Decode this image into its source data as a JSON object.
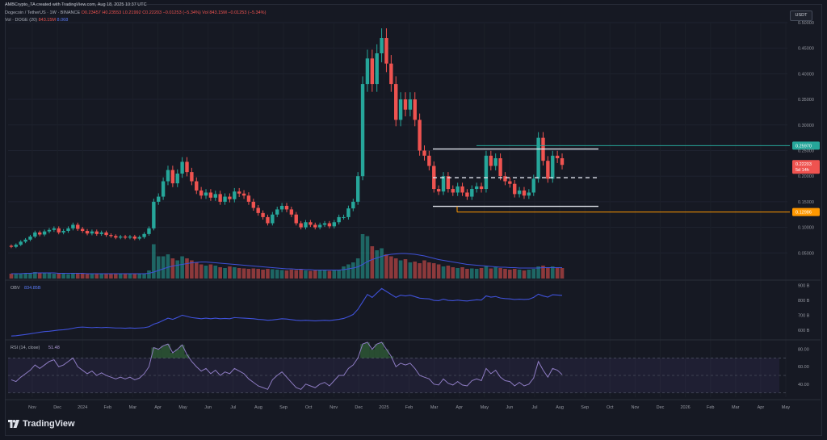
{
  "header": {
    "credit": "AMBCrypto_TA created with TradingView.com, Aug 18, 2025 10:37 UTC",
    "symbol": "Dogecoin / TetherUS · 1W · BINANCE",
    "ohlc": "O0.23457 H0.23553 L0.21992 C0.22203 −0.01253 (−5.34%)",
    "vol_inline": "Vol 843.15M −0.01253 (−5.34%)",
    "vol_label": "Vol · DOGE (20)",
    "vol_value": "843.15M",
    "vol_ma": "8.068"
  },
  "currency_button": "USDT",
  "footer": {
    "brand": "TradingView"
  },
  "chart_data": {
    "type": "candlestick",
    "title": "Dogecoin / TetherUS · 1W · BINANCE",
    "price_axis": {
      "ticks": [
        "0.50000",
        "0.45000",
        "0.40000",
        "0.35000",
        "0.30000",
        "0.25000",
        "0.20000",
        "0.15000",
        "0.10000",
        "0.05000"
      ],
      "range": [
        0.0,
        0.5
      ]
    },
    "time_axis": [
      "Nov",
      "Dec",
      "2024",
      "Feb",
      "Mar",
      "Apr",
      "May",
      "Jun",
      "Jul",
      "Aug",
      "Sep",
      "Oct",
      "Nov",
      "Dec",
      "2025",
      "Feb",
      "Mar",
      "Apr",
      "May",
      "Jun",
      "Jul",
      "Aug",
      "Sep",
      "Oct",
      "Nov",
      "Dec",
      "2026",
      "Feb",
      "Mar",
      "Apr",
      "May"
    ],
    "candles": [
      [
        0.064,
        0.062
      ],
      [
        0.062,
        0.066
      ],
      [
        0.066,
        0.072
      ],
      [
        0.072,
        0.076
      ],
      [
        0.076,
        0.082
      ],
      [
        0.082,
        0.09
      ],
      [
        0.09,
        0.086
      ],
      [
        0.086,
        0.092
      ],
      [
        0.092,
        0.095
      ],
      [
        0.095,
        0.098
      ],
      [
        0.098,
        0.09
      ],
      [
        0.09,
        0.093
      ],
      [
        0.093,
        0.098
      ],
      [
        0.098,
        0.105
      ],
      [
        0.105,
        0.097
      ],
      [
        0.097,
        0.093
      ],
      [
        0.093,
        0.088
      ],
      [
        0.088,
        0.092
      ],
      [
        0.092,
        0.087
      ],
      [
        0.087,
        0.09
      ],
      [
        0.09,
        0.085
      ],
      [
        0.085,
        0.083
      ],
      [
        0.083,
        0.08
      ],
      [
        0.08,
        0.082
      ],
      [
        0.082,
        0.08
      ],
      [
        0.08,
        0.082
      ],
      [
        0.082,
        0.078
      ],
      [
        0.078,
        0.081
      ],
      [
        0.081,
        0.087
      ],
      [
        0.087,
        0.098
      ],
      [
        0.098,
        0.15
      ],
      [
        0.15,
        0.16
      ],
      [
        0.16,
        0.19
      ],
      [
        0.19,
        0.212
      ],
      [
        0.212,
        0.186
      ],
      [
        0.186,
        0.205
      ],
      [
        0.205,
        0.228
      ],
      [
        0.228,
        0.208
      ],
      [
        0.208,
        0.19
      ],
      [
        0.19,
        0.172
      ],
      [
        0.172,
        0.162
      ],
      [
        0.162,
        0.168
      ],
      [
        0.168,
        0.158
      ],
      [
        0.158,
        0.165
      ],
      [
        0.165,
        0.15
      ],
      [
        0.15,
        0.16
      ],
      [
        0.16,
        0.155
      ],
      [
        0.155,
        0.17
      ],
      [
        0.17,
        0.166
      ],
      [
        0.166,
        0.162
      ],
      [
        0.162,
        0.15
      ],
      [
        0.15,
        0.138
      ],
      [
        0.138,
        0.128
      ],
      [
        0.128,
        0.12
      ],
      [
        0.12,
        0.108
      ],
      [
        0.108,
        0.125
      ],
      [
        0.125,
        0.135
      ],
      [
        0.135,
        0.142
      ],
      [
        0.142,
        0.135
      ],
      [
        0.135,
        0.125
      ],
      [
        0.125,
        0.108
      ],
      [
        0.108,
        0.1
      ],
      [
        0.1,
        0.11
      ],
      [
        0.11,
        0.105
      ],
      [
        0.105,
        0.1
      ],
      [
        0.1,
        0.105
      ],
      [
        0.105,
        0.108
      ],
      [
        0.108,
        0.102
      ],
      [
        0.102,
        0.11
      ],
      [
        0.11,
        0.12
      ],
      [
        0.12,
        0.12
      ],
      [
        0.12,
        0.137
      ],
      [
        0.137,
        0.15
      ],
      [
        0.15,
        0.2
      ],
      [
        0.2,
        0.38
      ],
      [
        0.38,
        0.43
      ],
      [
        0.43,
        0.38
      ],
      [
        0.38,
        0.44
      ],
      [
        0.44,
        0.47
      ],
      [
        0.47,
        0.42
      ],
      [
        0.42,
        0.38
      ],
      [
        0.38,
        0.31
      ],
      [
        0.31,
        0.35
      ],
      [
        0.35,
        0.33
      ],
      [
        0.33,
        0.35
      ],
      [
        0.35,
        0.31
      ],
      [
        0.31,
        0.25
      ],
      [
        0.25,
        0.24
      ],
      [
        0.24,
        0.22
      ],
      [
        0.22,
        0.175
      ],
      [
        0.175,
        0.17
      ],
      [
        0.17,
        0.2
      ],
      [
        0.2,
        0.175
      ],
      [
        0.175,
        0.168
      ],
      [
        0.168,
        0.18
      ],
      [
        0.18,
        0.168
      ],
      [
        0.168,
        0.16
      ],
      [
        0.16,
        0.175
      ],
      [
        0.175,
        0.18
      ],
      [
        0.18,
        0.175
      ],
      [
        0.175,
        0.24
      ],
      [
        0.24,
        0.22
      ],
      [
        0.22,
        0.235
      ],
      [
        0.235,
        0.2
      ],
      [
        0.2,
        0.19
      ],
      [
        0.19,
        0.185
      ],
      [
        0.185,
        0.165
      ],
      [
        0.165,
        0.172
      ],
      [
        0.172,
        0.162
      ],
      [
        0.162,
        0.168
      ],
      [
        0.168,
        0.195
      ],
      [
        0.195,
        0.275
      ],
      [
        0.275,
        0.23
      ],
      [
        0.23,
        0.195
      ],
      [
        0.195,
        0.24
      ],
      [
        0.24,
        0.235
      ],
      [
        0.235,
        0.222
      ]
    ],
    "volumes": [
      0.12,
      0.11,
      0.13,
      0.12,
      0.14,
      0.16,
      0.15,
      0.14,
      0.13,
      0.12,
      0.13,
      0.12,
      0.11,
      0.13,
      0.12,
      0.12,
      0.11,
      0.12,
      0.11,
      0.12,
      0.11,
      0.12,
      0.11,
      0.12,
      0.12,
      0.11,
      0.12,
      0.11,
      0.12,
      0.2,
      0.85,
      0.55,
      0.55,
      0.6,
      0.5,
      0.45,
      0.55,
      0.5,
      0.45,
      0.4,
      0.35,
      0.32,
      0.35,
      0.32,
      0.28,
      0.26,
      0.3,
      0.28,
      0.26,
      0.25,
      0.24,
      0.25,
      0.24,
      0.22,
      0.24,
      0.23,
      0.22,
      0.21,
      0.2,
      0.22,
      0.21,
      0.22,
      0.2,
      0.19,
      0.2,
      0.21,
      0.2,
      0.19,
      0.21,
      0.22,
      0.3,
      0.35,
      0.4,
      0.5,
      1.1,
      1.05,
      0.8,
      0.7,
      0.75,
      0.6,
      0.55,
      0.5,
      0.45,
      0.48,
      0.4,
      0.42,
      0.38,
      0.45,
      0.4,
      0.38,
      0.35,
      0.3,
      0.32,
      0.28,
      0.26,
      0.28,
      0.24,
      0.25,
      0.24,
      0.26,
      0.3,
      0.25,
      0.28,
      0.26,
      0.24,
      0.22,
      0.24,
      0.22,
      0.2,
      0.22,
      0.24,
      0.3,
      0.32,
      0.28,
      0.3,
      0.27,
      0.26
    ],
    "volume_ma": [
      0.12,
      0.12,
      0.12,
      0.13,
      0.13,
      0.14,
      0.14,
      0.14,
      0.14,
      0.14,
      0.13,
      0.13,
      0.13,
      0.13,
      0.13,
      0.13,
      0.12,
      0.12,
      0.12,
      0.12,
      0.12,
      0.12,
      0.12,
      0.12,
      0.12,
      0.12,
      0.12,
      0.12,
      0.12,
      0.13,
      0.16,
      0.2,
      0.24,
      0.28,
      0.31,
      0.33,
      0.35,
      0.37,
      0.39,
      0.4,
      0.41,
      0.41,
      0.4,
      0.39,
      0.38,
      0.37,
      0.36,
      0.35,
      0.34,
      0.33,
      0.32,
      0.31,
      0.3,
      0.29,
      0.28,
      0.27,
      0.26,
      0.25,
      0.24,
      0.24,
      0.23,
      0.23,
      0.22,
      0.22,
      0.21,
      0.21,
      0.21,
      0.21,
      0.21,
      0.21,
      0.22,
      0.24,
      0.26,
      0.29,
      0.35,
      0.42,
      0.47,
      0.51,
      0.55,
      0.58,
      0.6,
      0.61,
      0.62,
      0.62,
      0.61,
      0.6,
      0.58,
      0.56,
      0.53,
      0.5,
      0.47,
      0.45,
      0.43,
      0.41,
      0.39,
      0.37,
      0.35,
      0.34,
      0.33,
      0.32,
      0.31,
      0.3,
      0.29,
      0.28,
      0.28,
      0.27,
      0.27,
      0.26,
      0.26,
      0.26,
      0.26,
      0.26,
      0.27,
      0.27,
      0.27,
      0.27,
      0.27
    ],
    "levels": [
      {
        "label": "0.25970",
        "value": 0.2597,
        "color": "#26a69a"
      },
      {
        "label": "0.12986",
        "value": 0.12986,
        "color": "#ff9800"
      }
    ],
    "current_price": {
      "label": "0.22203",
      "countdown": "5d 14h",
      "value": 0.22203,
      "color": "#ef5350"
    },
    "range_box": {
      "top": 0.253,
      "mid": 0.197,
      "bottom": 0.141
    },
    "obv": {
      "label": "OBV",
      "value": "834.85B",
      "ticks": [
        "900 B",
        "800 B",
        "700 B",
        "600 B"
      ],
      "range": [
        550,
        920
      ],
      "series": [
        560,
        562,
        566,
        570,
        575,
        580,
        585,
        590,
        592,
        596,
        600,
        602,
        606,
        612,
        618,
        620,
        618,
        616,
        618,
        616,
        618,
        616,
        614,
        614,
        612,
        614,
        612,
        614,
        616,
        622,
        640,
        650,
        665,
        680,
        672,
        685,
        700,
        692,
        684,
        680,
        676,
        680,
        676,
        680,
        676,
        678,
        676,
        684,
        682,
        680,
        678,
        676,
        672,
        670,
        666,
        668,
        672,
        676,
        674,
        670,
        666,
        664,
        666,
        664,
        662,
        664,
        666,
        664,
        668,
        672,
        678,
        690,
        705,
        740,
        790,
        840,
        820,
        850,
        880,
        860,
        840,
        820,
        835,
        830,
        835,
        825,
        815,
        812,
        810,
        800,
        798,
        808,
        800,
        798,
        802,
        798,
        796,
        800,
        804,
        802,
        830,
        822,
        826,
        816,
        812,
        810,
        806,
        808,
        806,
        808,
        820,
        842,
        830,
        822,
        838,
        836,
        834
      ]
    },
    "rsi": {
      "label": "RSI (14, close)",
      "value": "51.48",
      "ticks": [
        "80.00",
        "60.00",
        "40.00"
      ],
      "levels": [
        70,
        50,
        30
      ],
      "range": [
        25,
        88
      ],
      "series": [
        45,
        43,
        48,
        52,
        56,
        62,
        58,
        62,
        66,
        68,
        60,
        62,
        66,
        70,
        60,
        56,
        52,
        55,
        50,
        53,
        50,
        48,
        46,
        48,
        46,
        48,
        45,
        47,
        52,
        60,
        82,
        80,
        84,
        86,
        76,
        80,
        85,
        74,
        66,
        60,
        55,
        58,
        52,
        56,
        50,
        54,
        52,
        58,
        55,
        52,
        46,
        42,
        38,
        36,
        34,
        45,
        50,
        54,
        48,
        42,
        36,
        34,
        40,
        38,
        36,
        40,
        42,
        38,
        44,
        50,
        50,
        58,
        62,
        70,
        86,
        88,
        80,
        86,
        88,
        80,
        72,
        60,
        64,
        62,
        64,
        58,
        50,
        48,
        46,
        40,
        39,
        46,
        41,
        39,
        43,
        39,
        38,
        44,
        46,
        44,
        58,
        52,
        56,
        48,
        44,
        43,
        38,
        42,
        38,
        40,
        47,
        66,
        56,
        48,
        58,
        56,
        51
      ]
    }
  }
}
